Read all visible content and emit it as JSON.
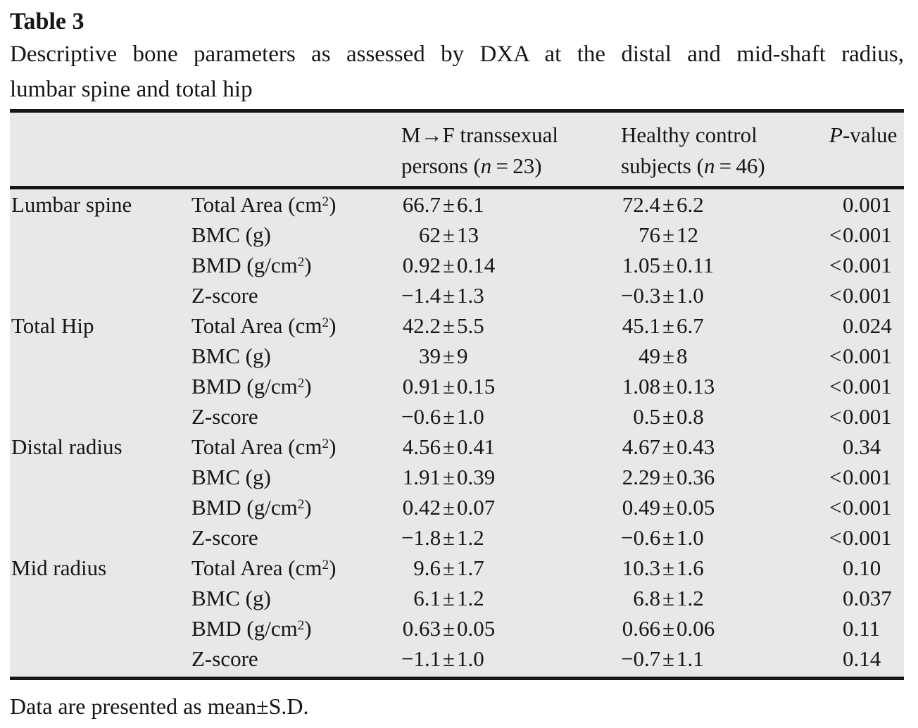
{
  "table": {
    "label": "Table 3",
    "caption_lines": [
      "Descriptive bone parameters as assessed by DXA at the distal and mid-shaft radius,",
      "lumbar spine and total hip"
    ],
    "header": {
      "columns": [
        {
          "lines": []
        },
        {
          "lines": []
        },
        {
          "lines": [
            "M→F transsexual",
            "persons (n=23)"
          ]
        },
        {
          "lines": [
            "Healthy control",
            "subjects (n=46)"
          ]
        },
        {
          "lines": [
            "P-value"
          ]
        }
      ]
    },
    "groups": [
      {
        "site": "Lumbar spine",
        "rows": [
          {
            "parameter": "Total Area (cm²)",
            "mtf": "66.7±6.1",
            "control": "72.4±6.2",
            "p": "0.001"
          },
          {
            "parameter": "BMC (g)",
            "mtf": "62±13",
            "control": "76±12",
            "p": "<0.001"
          },
          {
            "parameter": "BMD (g/cm²)",
            "mtf": "0.92±0.14",
            "control": "1.05±0.11",
            "p": "<0.001"
          },
          {
            "parameter": "Z-score",
            "mtf": "−1.4±1.3",
            "control": "−0.3±1.0",
            "p": "<0.001"
          }
        ]
      },
      {
        "site": "Total Hip",
        "rows": [
          {
            "parameter": "Total Area (cm²)",
            "mtf": "42.2±5.5",
            "control": "45.1±6.7",
            "p": "0.024"
          },
          {
            "parameter": "BMC (g)",
            "mtf": "39±9",
            "control": "49±8",
            "p": "<0.001"
          },
          {
            "parameter": "BMD (g/cm²)",
            "mtf": "0.91±0.15",
            "control": "1.08±0.13",
            "p": "<0.001"
          },
          {
            "parameter": "Z-score",
            "mtf": "−0.6±1.0",
            "control": "0.5±0.8",
            "p": "<0.001"
          }
        ]
      },
      {
        "site": "Distal radius",
        "rows": [
          {
            "parameter": "Total Area (cm²)",
            "mtf": "4.56±0.41",
            "control": "4.67±0.43",
            "p": "0.34"
          },
          {
            "parameter": "BMC (g)",
            "mtf": "1.91±0.39",
            "control": "2.29±0.36",
            "p": "<0.001"
          },
          {
            "parameter": "BMD (g/cm²)",
            "mtf": "0.42±0.07",
            "control": "0.49±0.05",
            "p": "<0.001"
          },
          {
            "parameter": "Z-score",
            "mtf": "−1.8±1.2",
            "control": "−0.6±1.0",
            "p": "<0.001"
          }
        ]
      },
      {
        "site": "Mid radius",
        "rows": [
          {
            "parameter": "Total Area (cm²)",
            "mtf": "9.6±1.7",
            "control": "10.3±1.6",
            "p": "0.10"
          },
          {
            "parameter": "BMC (g)",
            "mtf": "6.1±1.2",
            "control": "6.8±1.2",
            "p": "0.037"
          },
          {
            "parameter": "BMD (g/cm²)",
            "mtf": "0.63±0.05",
            "control": "0.66±0.06",
            "p": "0.11"
          },
          {
            "parameter": "Z-score",
            "mtf": "−1.1±1.0",
            "control": "−0.7±1.1",
            "p": "0.14"
          }
        ]
      }
    ],
    "footnote": "Data are presented as mean±S.D.",
    "colors": {
      "table_background": "#e8e8e6",
      "rule": "#161616",
      "text": "#161616",
      "page_background": "#ffffff"
    }
  }
}
